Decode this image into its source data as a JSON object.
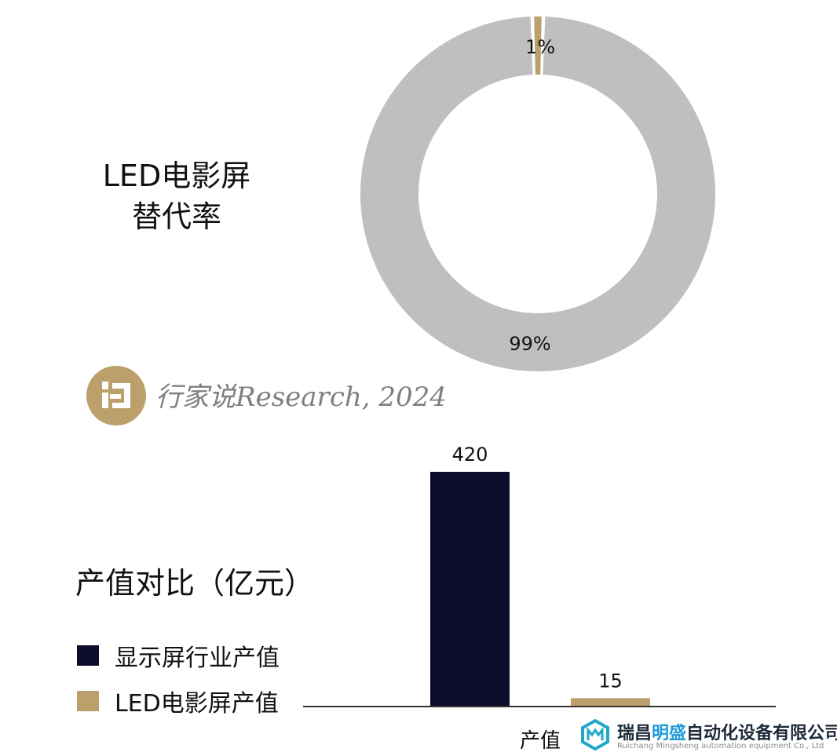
{
  "chart_data": [
    {
      "type": "pie",
      "title_lines": [
        "LED电影屏",
        "替代率"
      ],
      "slices": [
        {
          "label": "1%",
          "value": 1,
          "color": "#bba06c"
        },
        {
          "label": "99%",
          "value": 99,
          "color": "#bfbfbf"
        }
      ],
      "donut": true
    },
    {
      "type": "bar",
      "title": "产值对比（亿元）",
      "categories": [
        "产值"
      ],
      "series": [
        {
          "name": "显示屏行业产值",
          "values": [
            420
          ],
          "color": "#0b0b2e"
        },
        {
          "name": "LED电影屏产值",
          "values": [
            15
          ],
          "color": "#bba06c"
        }
      ],
      "data_labels": [
        "420",
        "15"
      ],
      "ylim": [
        0,
        420
      ],
      "legend": "left"
    }
  ],
  "watermark": {
    "text": "行家说Research, 2024"
  },
  "footer": {
    "company_pre": "瑞昌",
    "company_hl": "明盛",
    "company_post": "自动化设备有限公司",
    "company_en": "Ruichang Mingsheng automation equipment Co., Ltd"
  }
}
